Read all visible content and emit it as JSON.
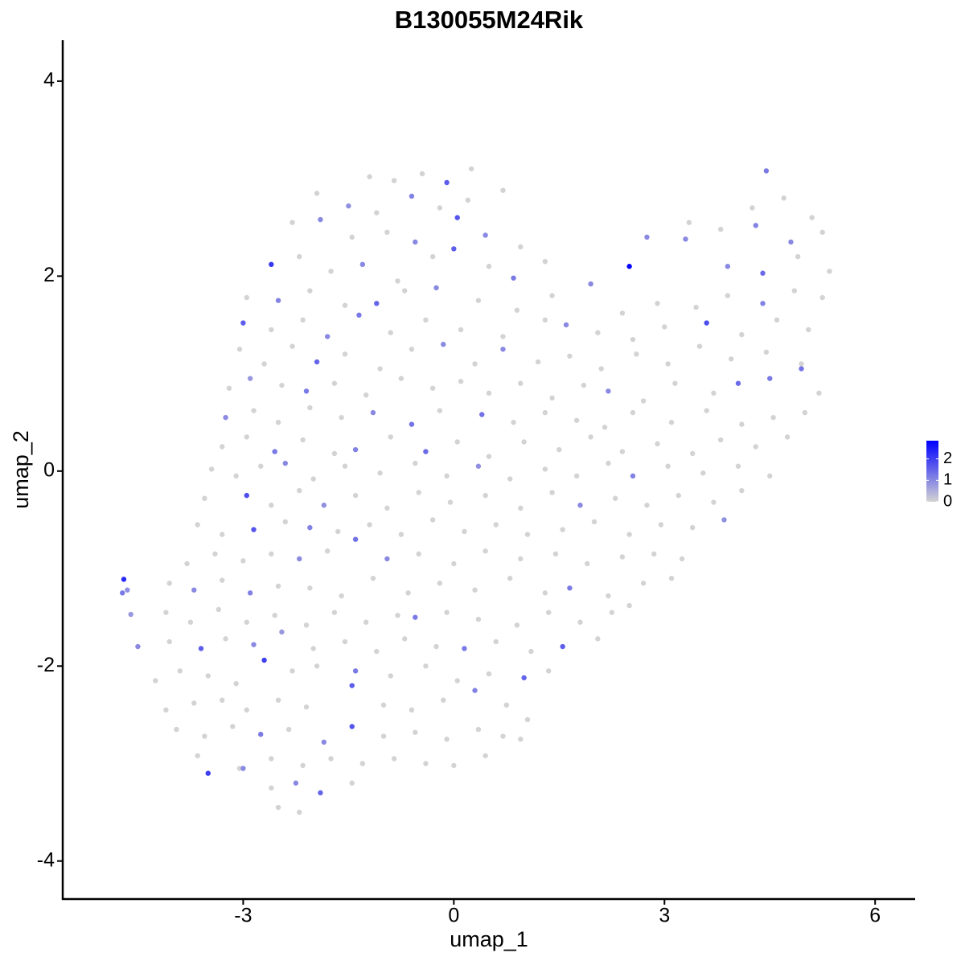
{
  "chart_data": {
    "type": "scatter",
    "title": "B130055M24Rik",
    "x_label": "umap_1",
    "y_label": "umap_2",
    "xlim": [
      -5.57,
      6.57
    ],
    "ylim": [
      -4.39,
      4.42
    ],
    "xticks": [
      -3,
      0,
      3,
      6
    ],
    "yticks": [
      -4,
      -2,
      0,
      2,
      4
    ],
    "colors": [
      "#d3d3d3",
      "#0000ff"
    ],
    "color_lim": [
      0,
      2.85
    ],
    "color_ticks": [
      0,
      1,
      2
    ],
    "x": [
      -1.2,
      -0.85,
      -0.45,
      -0.1,
      0.25,
      4.45,
      -1.95,
      -1.5,
      -1.1,
      -0.6,
      -0.2,
      0.2,
      0.7,
      4.25,
      4.7,
      5.1,
      -2.3,
      -1.9,
      -1.45,
      -0.95,
      -0.55,
      0.05,
      0.45,
      0.95,
      3.35,
      3.8,
      4.3,
      4.8,
      5.25,
      -2.6,
      -2.2,
      -1.75,
      -1.3,
      -0.8,
      -0.3,
      0.0,
      0.5,
      0.85,
      1.3,
      2.5,
      2.75,
      3.3,
      3.9,
      4.4,
      4.9,
      5.35,
      -2.95,
      -2.5,
      -2.05,
      -1.55,
      -1.1,
      -0.7,
      -0.25,
      0.35,
      0.9,
      1.4,
      1.95,
      2.4,
      2.9,
      3.45,
      3.9,
      4.4,
      4.85,
      5.25,
      -3.0,
      -2.6,
      -2.15,
      -1.8,
      -1.35,
      -0.9,
      -0.4,
      0.1,
      0.7,
      1.3,
      1.6,
      2.05,
      2.55,
      3.0,
      3.6,
      4.1,
      4.6,
      5.05,
      -3.05,
      -2.7,
      -2.3,
      -1.95,
      -1.55,
      -1.05,
      -0.6,
      -0.15,
      0.3,
      0.7,
      1.2,
      1.65,
      2.1,
      2.6,
      3.05,
      3.5,
      3.95,
      4.45,
      4.95,
      -3.2,
      -2.9,
      -2.45,
      -2.1,
      -1.7,
      -1.25,
      -0.75,
      -0.3,
      0.1,
      0.5,
      0.95,
      1.4,
      1.85,
      2.2,
      2.7,
      3.15,
      3.7,
      4.05,
      4.5,
      4.95,
      5.2,
      -3.25,
      -2.85,
      -2.5,
      -2.05,
      -1.6,
      -1.15,
      -0.6,
      -0.2,
      0.4,
      0.85,
      1.3,
      1.75,
      2.15,
      2.55,
      3.1,
      3.6,
      4.1,
      4.55,
      5.0,
      -3.3,
      -2.95,
      -2.55,
      -2.15,
      -1.7,
      -1.4,
      -0.9,
      -0.4,
      0.05,
      0.5,
      1.0,
      1.5,
      1.95,
      2.4,
      2.9,
      3.4,
      3.8,
      4.3,
      4.75,
      -3.45,
      -3.1,
      -2.75,
      -2.4,
      -2.0,
      -1.55,
      -1.05,
      -0.55,
      -0.1,
      0.35,
      0.8,
      1.3,
      1.75,
      2.2,
      2.55,
      3.05,
      3.55,
      4.05,
      4.5,
      -3.55,
      -2.95,
      -2.6,
      -2.2,
      -1.85,
      -1.4,
      -0.95,
      -0.5,
      -0.05,
      0.45,
      0.95,
      1.4,
      1.8,
      2.3,
      2.75,
      3.2,
      3.7,
      4.1,
      -3.65,
      -3.3,
      -2.85,
      -2.4,
      -2.05,
      -1.65,
      -1.2,
      -0.75,
      -0.3,
      0.15,
      0.6,
      1.05,
      1.55,
      2.0,
      2.5,
      2.95,
      3.4,
      3.85,
      -3.8,
      -3.4,
      -3.0,
      -2.6,
      -2.2,
      -1.8,
      -1.4,
      -0.95,
      -0.5,
      0.0,
      0.45,
      0.95,
      1.45,
      1.9,
      2.4,
      2.85,
      3.25,
      -4.7,
      -4.72,
      -4.65,
      -4.6,
      -4.05,
      -3.7,
      -3.3,
      -2.9,
      -2.5,
      -2.05,
      -1.6,
      -1.15,
      -0.65,
      -0.2,
      0.3,
      0.8,
      1.3,
      1.65,
      2.2,
      2.7,
      3.1,
      -4.1,
      -3.75,
      -3.35,
      -2.95,
      -2.55,
      -2.1,
      -1.7,
      -1.25,
      -0.8,
      -0.55,
      -0.1,
      0.35,
      0.9,
      1.35,
      1.8,
      2.25,
      2.5,
      -4.5,
      -4.05,
      -3.6,
      -3.25,
      -2.85,
      -2.45,
      -2.0,
      -1.55,
      -1.1,
      -0.7,
      -0.25,
      0.15,
      0.6,
      1.1,
      1.55,
      2.05,
      -4.25,
      -3.9,
      -3.5,
      -3.1,
      -2.7,
      -2.3,
      -1.95,
      -1.4,
      -0.9,
      -0.4,
      0.05,
      0.5,
      1.0,
      1.35,
      -4.1,
      -3.7,
      -3.3,
      -2.95,
      -2.5,
      -2.1,
      -1.45,
      -1.0,
      -0.6,
      -0.15,
      0.3,
      0.75,
      1.05,
      -3.95,
      -3.55,
      -3.15,
      -2.75,
      -2.35,
      -1.85,
      -1.45,
      -1.0,
      -0.55,
      -0.1,
      0.35,
      0.7,
      0.95,
      -3.65,
      -3.5,
      -3.05,
      -2.6,
      -2.15,
      -1.75,
      -1.3,
      -0.85,
      -0.4,
      0.0,
      0.45,
      -3.0,
      -2.6,
      -2.25,
      -1.9,
      -1.45,
      -2.5,
      -2.2
    ],
    "values": [
      3.02,
      2.98,
      3.05,
      2.96,
      3.1,
      3.08,
      2.85,
      2.72,
      2.65,
      2.82,
      2.7,
      2.78,
      2.88,
      2.7,
      2.8,
      2.6,
      2.55,
      2.58,
      2.4,
      2.45,
      2.35,
      2.6,
      2.42,
      2.3,
      2.55,
      2.48,
      2.52,
      2.35,
      2.45,
      2.12,
      2.2,
      2.05,
      2.12,
      1.95,
      2.2,
      2.28,
      2.1,
      1.98,
      2.15,
      2.1,
      2.4,
      2.38,
      2.1,
      2.03,
      2.2,
      2.05,
      1.78,
      1.75,
      1.85,
      1.7,
      1.72,
      1.85,
      1.88,
      1.75,
      1.65,
      1.8,
      1.92,
      1.62,
      1.72,
      1.68,
      1.8,
      1.72,
      1.85,
      1.78,
      1.52,
      1.45,
      1.55,
      1.38,
      1.6,
      1.42,
      1.55,
      1.45,
      1.38,
      1.55,
      1.5,
      1.42,
      1.35,
      1.48,
      1.52,
      1.4,
      1.55,
      1.45,
      1.25,
      1.1,
      1.28,
      1.12,
      1.2,
      1.05,
      1.25,
      1.3,
      1.1,
      1.25,
      1.12,
      1.18,
      1.05,
      1.2,
      1.1,
      1.28,
      1.15,
      1.22,
      1.1,
      0.85,
      0.95,
      0.88,
      0.82,
      0.9,
      0.78,
      0.95,
      0.85,
      0.92,
      0.8,
      0.9,
      0.75,
      0.88,
      0.82,
      0.72,
      0.9,
      0.8,
      0.9,
      0.95,
      1.05,
      0.8,
      0.55,
      0.62,
      0.5,
      0.65,
      0.55,
      0.6,
      0.48,
      0.62,
      0.58,
      0.5,
      0.6,
      0.52,
      0.45,
      0.6,
      0.5,
      0.62,
      0.48,
      0.55,
      0.6,
      0.25,
      0.35,
      0.2,
      0.32,
      0.18,
      0.22,
      0.35,
      0.2,
      0.3,
      0.15,
      0.3,
      0.22,
      0.35,
      0.2,
      0.28,
      0.18,
      0.32,
      0.25,
      0.35,
      0.02,
      -0.05,
      0.05,
      0.08,
      -0.08,
      0.05,
      -0.02,
      0.08,
      -0.05,
      0.05,
      -0.08,
      0.02,
      -0.05,
      0.08,
      -0.05,
      0.05,
      -0.02,
      0.05,
      -0.05,
      -0.28,
      -0.25,
      -0.35,
      -0.2,
      -0.35,
      -0.25,
      -0.38,
      -0.22,
      -0.32,
      -0.25,
      -0.38,
      -0.22,
      -0.35,
      -0.28,
      -0.35,
      -0.25,
      -0.32,
      -0.2,
      -0.55,
      -0.65,
      -0.6,
      -0.52,
      -0.58,
      -0.62,
      -0.55,
      -0.65,
      -0.5,
      -0.62,
      -0.55,
      -0.65,
      -0.6,
      -0.52,
      -0.65,
      -0.55,
      -0.58,
      -0.5,
      -0.95,
      -0.85,
      -0.92,
      -0.85,
      -0.9,
      -0.82,
      -0.7,
      -0.9,
      -0.85,
      -0.95,
      -0.82,
      -0.9,
      -0.85,
      -0.95,
      -0.88,
      -0.85,
      -0.9,
      -1.11,
      -1.25,
      -1.22,
      -1.47,
      -1.15,
      -1.22,
      -1.12,
      -1.25,
      -1.18,
      -1.2,
      -1.28,
      -1.1,
      -1.25,
      -1.15,
      -1.22,
      -1.1,
      -1.25,
      -1.2,
      -1.28,
      -1.15,
      -1.1,
      -1.45,
      -1.55,
      -1.42,
      -1.55,
      -1.48,
      -1.58,
      -1.45,
      -1.55,
      -1.48,
      -1.5,
      -1.45,
      -1.52,
      -1.58,
      -1.45,
      -1.55,
      -1.45,
      -1.38,
      -1.8,
      -1.75,
      -1.82,
      -1.72,
      -1.78,
      -1.65,
      -1.82,
      -1.75,
      -1.85,
      -1.72,
      -1.8,
      -1.82,
      -1.75,
      -1.85,
      -1.8,
      -1.72,
      -2.15,
      -2.05,
      -2.1,
      -2.18,
      -1.94,
      -2.05,
      -2.0,
      -2.05,
      -2.1,
      -2.0,
      -2.15,
      -2.08,
      -2.12,
      -2.05,
      -2.45,
      -2.38,
      -2.35,
      -2.45,
      -2.35,
      -2.42,
      -2.2,
      -2.4,
      -2.45,
      -2.35,
      -2.25,
      -2.4,
      -2.55,
      -2.65,
      -2.72,
      -2.62,
      -2.7,
      -2.65,
      -2.78,
      -2.62,
      -2.72,
      -2.68,
      -2.75,
      -2.65,
      -2.72,
      -2.75,
      -2.92,
      -3.1,
      -3.05,
      -2.95,
      -3.02,
      -2.95,
      -3.0,
      -2.95,
      -3.0,
      -3.02,
      -2.92,
      -3.05,
      -3.25,
      -3.2,
      -3.3,
      -3.2,
      -3.45,
      -3.5
    ],
    "color_values": [
      0,
      0,
      0,
      1.6,
      0,
      1.2,
      0,
      0.9,
      0,
      1.1,
      0,
      0,
      0,
      0,
      0,
      0,
      0,
      1.0,
      0,
      0,
      1.0,
      1.7,
      1.0,
      0,
      0,
      0,
      1.1,
      1.0,
      0,
      2.1,
      0,
      0,
      1.0,
      0,
      0,
      1.6,
      0,
      1.2,
      0,
      2.8,
      1.0,
      1.0,
      1.0,
      1.4,
      0,
      0,
      0,
      1.1,
      0,
      0,
      1.5,
      0,
      1.0,
      0,
      0,
      0,
      1.0,
      0,
      0,
      0,
      0,
      1.1,
      0,
      0,
      1.6,
      0,
      0,
      1.0,
      1.2,
      0,
      0,
      0,
      0,
      0,
      1.0,
      0,
      0,
      0,
      1.8,
      0,
      0,
      0,
      0,
      0,
      0,
      1.5,
      0,
      0,
      0,
      1.0,
      0,
      1.0,
      0,
      0,
      0,
      0,
      0,
      0,
      0,
      0,
      0,
      0,
      0.8,
      0,
      1.2,
      0,
      0,
      0,
      0,
      0,
      0,
      0,
      0,
      0,
      1.0,
      0,
      0,
      0,
      1.4,
      1.2,
      1.3,
      0,
      1.0,
      0,
      0,
      0,
      0,
      1.0,
      1.3,
      0,
      1.3,
      0,
      0,
      0,
      0,
      0,
      0,
      0,
      0,
      0,
      0,
      0,
      0,
      1.2,
      0,
      0,
      1.1,
      0,
      1.4,
      0,
      0,
      0,
      0,
      0,
      0,
      0,
      0,
      0,
      0,
      0,
      0,
      0,
      0,
      1.0,
      0,
      0,
      0,
      0,
      0,
      0.9,
      0,
      0,
      0,
      0,
      1.1,
      0,
      0,
      0,
      0,
      0,
      1.8,
      0,
      0,
      0.9,
      0,
      0,
      0,
      0,
      0,
      0,
      0,
      1.0,
      0,
      0,
      0,
      0,
      0,
      0,
      0,
      1.7,
      0,
      1.1,
      0,
      0,
      0,
      0,
      0,
      0,
      0,
      0,
      0,
      0,
      0,
      0,
      0.9,
      0,
      0,
      0,
      0,
      1.0,
      0,
      1.3,
      1.0,
      0,
      0,
      0,
      0,
      0,
      0,
      0,
      0,
      0,
      2.3,
      1.2,
      0.9,
      0.8,
      0,
      1.0,
      0,
      1.1,
      0,
      0,
      0,
      0,
      0,
      0,
      0,
      0,
      0,
      1.2,
      0,
      0,
      0,
      0,
      0,
      0,
      0,
      0,
      0,
      0,
      0,
      0,
      1.2,
      0,
      0,
      0,
      0,
      0,
      0,
      0,
      1.0,
      0,
      1.6,
      0,
      1.0,
      0.8,
      0,
      0,
      0,
      0,
      0,
      1.2,
      0,
      0,
      1.6,
      0,
      0,
      0,
      0,
      0,
      2.0,
      0,
      0,
      1.2,
      0,
      0,
      0,
      0,
      1.5,
      0,
      0,
      0,
      0,
      0,
      0,
      0,
      1.6,
      0,
      0,
      0,
      1.1,
      0,
      0,
      0,
      0,
      0,
      1.2,
      0,
      1.0,
      1.7,
      0,
      0,
      0,
      0,
      0,
      0,
      0,
      2.0,
      0,
      0,
      0,
      0,
      0,
      0,
      0,
      0,
      0,
      1.0,
      0,
      1.0,
      1.5,
      0,
      0,
      0
    ]
  }
}
